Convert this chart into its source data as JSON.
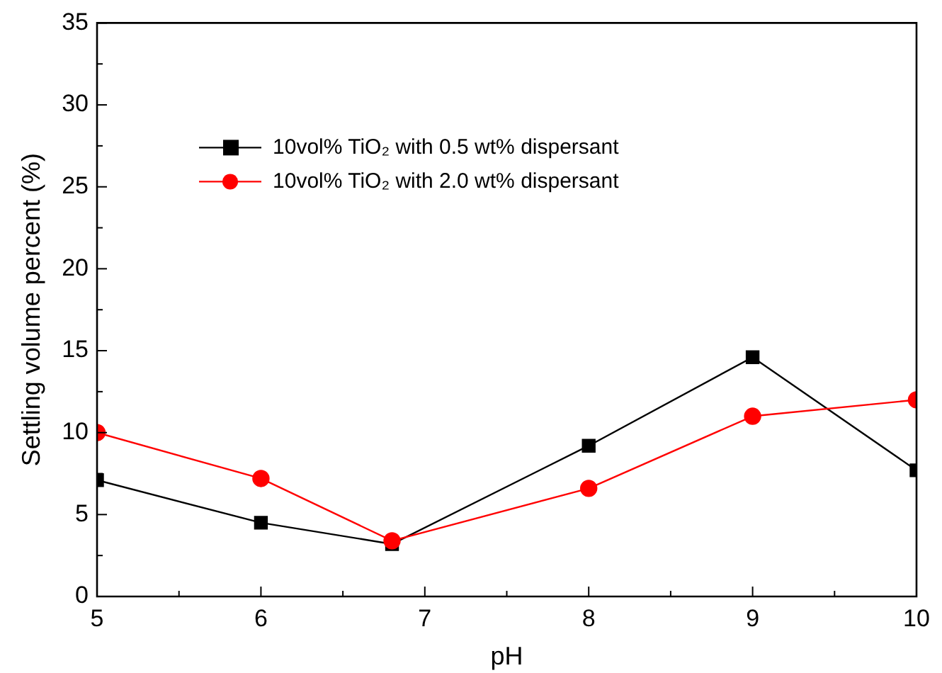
{
  "chart_data": {
    "type": "line",
    "xlabel": "pH",
    "ylabel": "Settling volume percent (%)",
    "x": [
      5,
      6,
      6.8,
      8,
      9,
      10
    ],
    "xlim": [
      5,
      10
    ],
    "xticks": [
      5,
      6,
      7,
      8,
      9,
      10
    ],
    "ylim": [
      0,
      35
    ],
    "yticks": [
      0,
      5,
      10,
      15,
      20,
      25,
      30,
      35
    ],
    "grid": false,
    "legend": "top",
    "line_style": "solid",
    "series": [
      {
        "name": "10vol% TiO₂ with 0.5 wt% dispersant",
        "color": "#000000",
        "marker": "square",
        "values": [
          7.1,
          4.5,
          3.2,
          9.2,
          14.6,
          7.7
        ]
      },
      {
        "name": "10vol% TiO₂ with 2.0 wt% dispersant",
        "color": "#ff0000",
        "marker": "circle",
        "values": [
          10,
          7.2,
          3.4,
          6.6,
          11,
          12
        ]
      }
    ]
  }
}
